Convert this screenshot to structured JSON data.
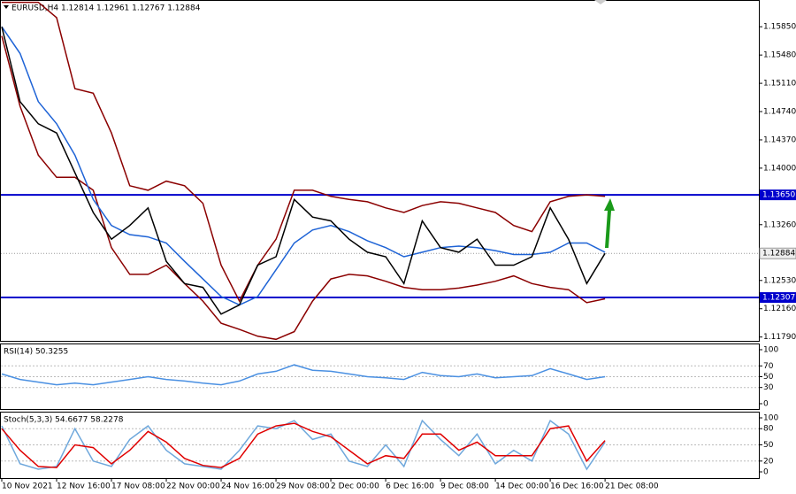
{
  "chart_data": [
    {
      "type": "line",
      "title": "EURUSD,H4  1.12814 1.12961 1.12767 1.12884",
      "categories": [
        "10 Nov 2021",
        null,
        null,
        "12 Nov 16:00",
        null,
        null,
        "17 Nov 08:00",
        null,
        null,
        "22 Nov 00:00",
        null,
        null,
        "24 Nov 16:00",
        null,
        null,
        "29 Nov 08:00",
        null,
        null,
        "2 Dec 00:00",
        null,
        null,
        "6 Dec 16:00",
        null,
        null,
        "9 Dec 08:00",
        null,
        null,
        "14 Dec 00:00",
        null,
        null,
        "16 Dec 16:00",
        null,
        null,
        "21 Dec 08:00"
      ],
      "ylim": [
        1.1174,
        1.162
      ],
      "yticks": [
        {
          "value": 1.1585,
          "label": "1.15850"
        },
        {
          "value": 1.1548,
          "label": "1.15480"
        },
        {
          "value": 1.1511,
          "label": "1.15110"
        },
        {
          "value": 1.1474,
          "label": "1.14740"
        },
        {
          "value": 1.1437,
          "label": "1.14370"
        },
        {
          "value": 1.14,
          "label": "1.14000"
        },
        {
          "value": 1.1326,
          "label": "1.13260"
        },
        {
          "value": 1.1253,
          "label": "1.12530"
        },
        {
          "value": 1.1216,
          "label": "1.12160"
        },
        {
          "value": 1.1179,
          "label": "1.11790"
        }
      ],
      "levels": [
        {
          "value": 1.1365,
          "label": "1.13650",
          "color": "#0000cc"
        },
        {
          "value": 1.12307,
          "label": "1.12307",
          "color": "#0000cc"
        }
      ],
      "current": {
        "value": 1.12884,
        "label": "1.12884"
      },
      "series": [
        {
          "color": "#8b0000",
          "values": [
            1.1617,
            1.1617,
            1.1617,
            1.1597,
            1.1504,
            1.1498,
            1.1446,
            1.1377,
            1.1371,
            1.1383,
            1.1377,
            1.1354,
            1.1273,
            1.1226,
            1.1273,
            1.1307,
            1.1371,
            1.1371,
            1.1363,
            1.1359,
            1.1356,
            1.1348,
            1.1342,
            1.1351,
            1.1356,
            1.1354,
            1.1348,
            1.1342,
            1.1325,
            1.1317,
            1.1356,
            1.1363,
            1.1365,
            1.1363
          ]
        },
        {
          "color": "#8b0000",
          "values": [
            1.1573,
            1.1481,
            1.1417,
            1.1388,
            1.1388,
            1.1371,
            1.1296,
            1.1261,
            1.1261,
            1.1273,
            1.1249,
            1.1226,
            1.1197,
            1.1189,
            1.118,
            1.1176,
            1.1186,
            1.1226,
            1.1255,
            1.1261,
            1.1259,
            1.1252,
            1.1244,
            1.1241,
            1.1241,
            1.1243,
            1.1247,
            1.1252,
            1.1259,
            1.1249,
            1.1244,
            1.1241,
            1.1224,
            1.1229
          ]
        },
        {
          "color": "#1e63d6",
          "values": [
            1.1585,
            1.155,
            1.1487,
            1.1458,
            1.1417,
            1.1359,
            1.1325,
            1.1313,
            1.131,
            1.1302,
            1.1278,
            1.1255,
            1.1232,
            1.1221,
            1.1232,
            1.1267,
            1.1302,
            1.1319,
            1.1325,
            1.1317,
            1.1305,
            1.1296,
            1.1284,
            1.129,
            1.1296,
            1.1298,
            1.1296,
            1.1292,
            1.1287,
            1.1287,
            1.129,
            1.1302,
            1.1302,
            1.129
          ]
        },
        {
          "color": "#000000",
          "values": [
            1.1585,
            1.1487,
            1.1458,
            1.1446,
            1.1394,
            1.1342,
            1.1307,
            1.1325,
            1.1348,
            1.1278,
            1.1249,
            1.1244,
            1.1209,
            1.1221,
            1.1273,
            1.1284,
            1.1359,
            1.1336,
            1.1331,
            1.1307,
            1.129,
            1.1284,
            1.1249,
            1.1331,
            1.1296,
            1.129,
            1.1307,
            1.1273,
            1.1273,
            1.1284,
            1.1348,
            1.1307,
            1.1249,
            1.12884
          ]
        }
      ]
    },
    {
      "type": "line",
      "title": "RSI(14) 50.3255",
      "ylim": [
        0,
        100
      ],
      "yticks": [
        100,
        70,
        50,
        30,
        0
      ],
      "series": [
        {
          "color": "#4a90e2",
          "values": [
            55,
            45,
            40,
            35,
            38,
            35,
            40,
            45,
            50,
            45,
            42,
            38,
            35,
            42,
            55,
            60,
            72,
            62,
            60,
            55,
            50,
            48,
            45,
            58,
            52,
            50,
            55,
            48,
            50,
            52,
            65,
            55,
            45,
            50
          ]
        }
      ]
    },
    {
      "type": "line",
      "title": "Stoch(5,3,3) 54.6677 58.2278",
      "ylim": [
        0,
        100
      ],
      "yticks": [
        100,
        80,
        50,
        20,
        0
      ],
      "series": [
        {
          "color": "#6fa8dc",
          "values": [
            85,
            15,
            5,
            10,
            80,
            20,
            10,
            60,
            85,
            40,
            15,
            10,
            5,
            40,
            85,
            80,
            95,
            60,
            70,
            20,
            10,
            50,
            10,
            95,
            60,
            30,
            70,
            15,
            40,
            20,
            95,
            70,
            5,
            55
          ]
        },
        {
          "color": "#e00000",
          "values": [
            80,
            40,
            10,
            8,
            50,
            45,
            15,
            40,
            75,
            55,
            25,
            12,
            8,
            25,
            70,
            85,
            90,
            75,
            65,
            40,
            15,
            30,
            25,
            70,
            70,
            40,
            55,
            30,
            30,
            30,
            80,
            85,
            20,
            58
          ]
        }
      ]
    }
  ]
}
